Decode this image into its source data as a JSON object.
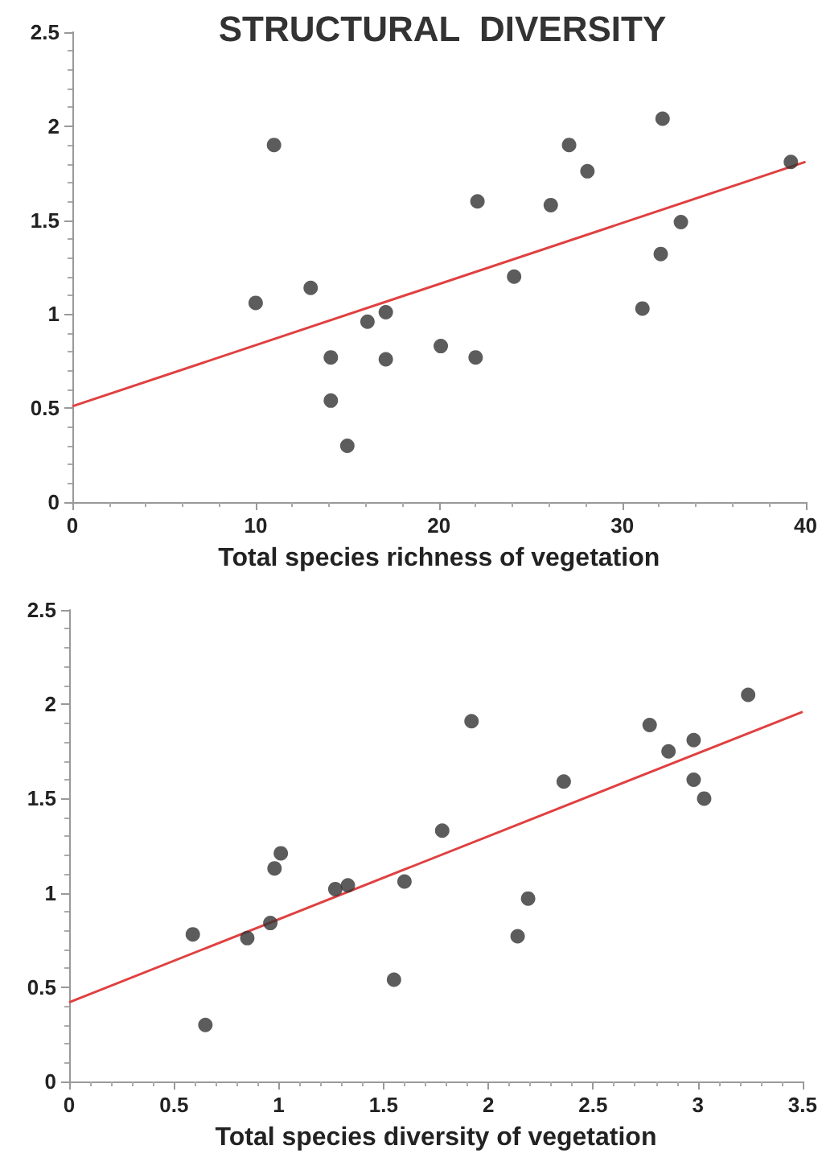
{
  "chart_data": [
    {
      "type": "scatter",
      "title": "STRUCTURAL  DIVERSITY",
      "xlabel": "Total species richness of vegetation",
      "xlim": [
        0,
        40
      ],
      "xticks": [
        0,
        10,
        20,
        30,
        40
      ],
      "ylim": [
        0,
        2.5
      ],
      "yticks": [
        0,
        0.5,
        1,
        1.5,
        2,
        2.5
      ],
      "series": [
        {
          "color": "#333333",
          "marker": "circle",
          "x": [
            10.0,
            11.0,
            13.0,
            14.1,
            14.1,
            15.0,
            16.1,
            17.1,
            17.1,
            20.1,
            22.1,
            22.0,
            24.1,
            26.1,
            27.1,
            28.1,
            31.1,
            32.2,
            32.1,
            33.2,
            39.2
          ],
          "values": [
            1.06,
            1.9,
            1.14,
            0.77,
            0.54,
            0.3,
            0.96,
            1.01,
            0.76,
            0.83,
            1.6,
            0.77,
            1.2,
            1.58,
            1.9,
            1.76,
            1.03,
            2.04,
            1.32,
            1.49,
            1.81
          ]
        },
        {
          "type": "line",
          "marker": "none",
          "color": "#e04040",
          "x": [
            0,
            40
          ],
          "values": [
            0.51,
            1.81
          ]
        }
      ]
    },
    {
      "type": "scatter",
      "xlabel": "Total species diversity of vegetation",
      "xlim": [
        0,
        3.5
      ],
      "xticks": [
        0,
        0.5,
        1,
        1.5,
        2,
        2.5,
        3,
        3.5
      ],
      "ylim": [
        0,
        2.5
      ],
      "yticks": [
        0,
        0.5,
        1,
        1.5,
        2,
        2.5
      ],
      "series": [
        {
          "color": "#333333",
          "marker": "circle",
          "x": [
            0.59,
            0.65,
            0.85,
            0.96,
            0.98,
            1.01,
            1.27,
            1.33,
            1.55,
            1.6,
            1.78,
            1.92,
            2.14,
            2.19,
            2.36,
            2.77,
            2.86,
            2.98,
            2.98,
            3.03,
            3.24
          ],
          "values": [
            0.78,
            0.3,
            0.76,
            0.84,
            1.13,
            1.21,
            1.02,
            1.04,
            0.54,
            1.06,
            1.33,
            1.91,
            0.77,
            0.97,
            1.59,
            1.89,
            1.75,
            1.81,
            1.6,
            1.5,
            2.05
          ]
        },
        {
          "type": "line",
          "marker": "none",
          "color": "#e04040",
          "x": [
            0,
            3.5
          ],
          "values": [
            0.42,
            1.96
          ]
        }
      ]
    }
  ]
}
